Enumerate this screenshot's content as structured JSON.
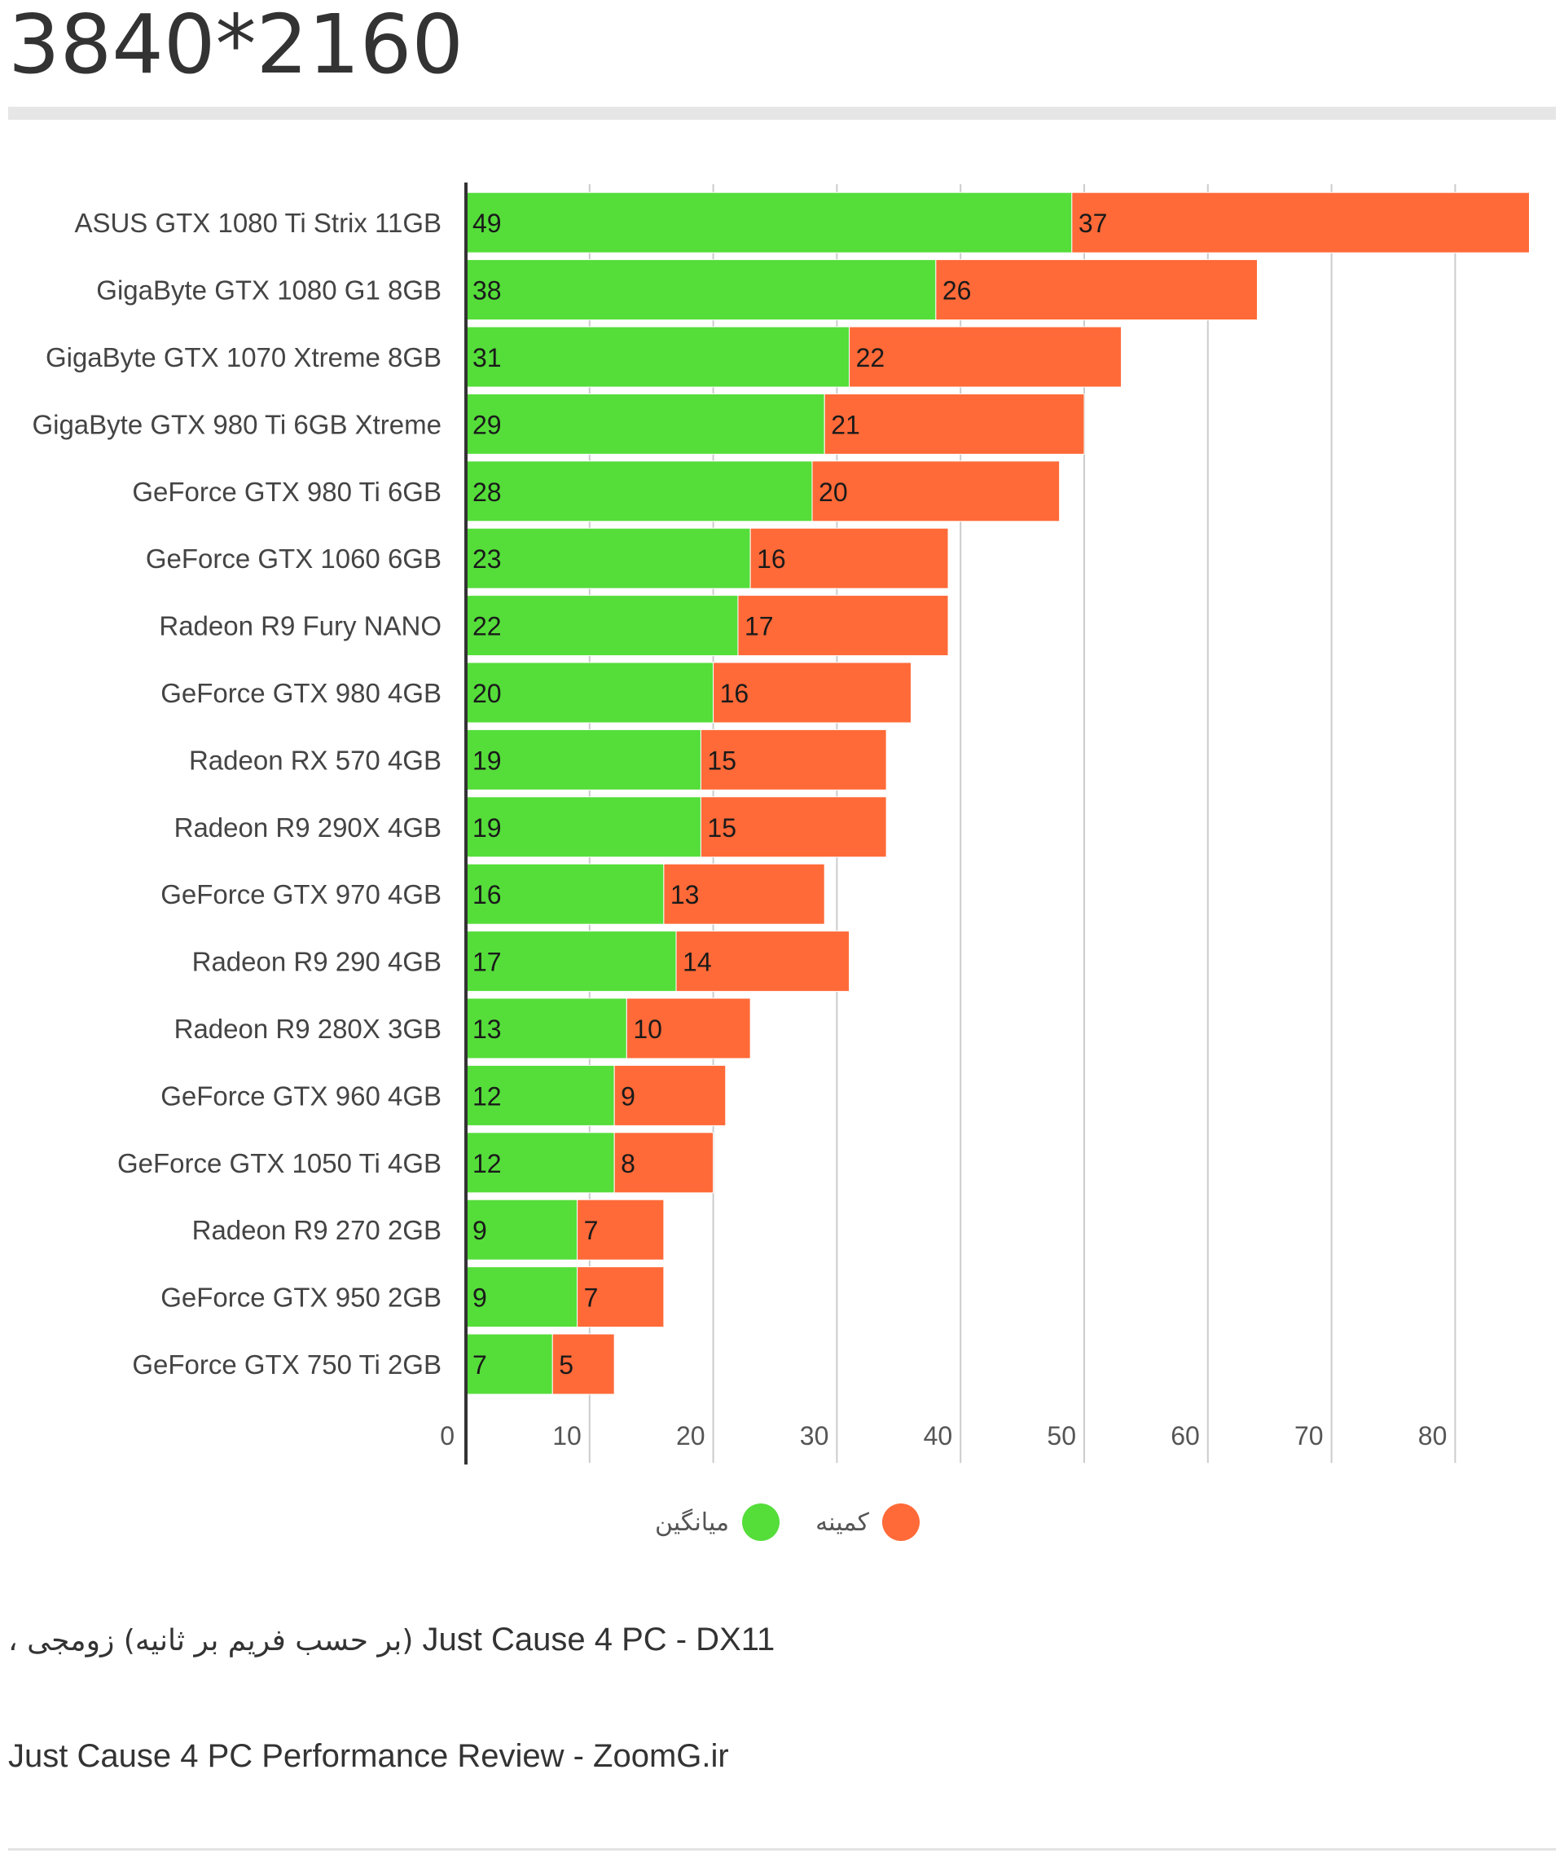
{
  "page": {
    "title": "3840*2160",
    "caption_line1_fa": "(بر حسب فریم بر ثانیه) زومجی ،",
    "caption_line1_en": "Just Cause 4 PC -  DX11",
    "caption_line2": "Just Cause 4 PC Performance Review - ZoomG.ir"
  },
  "legend": {
    "items": [
      {
        "label": "کمینه",
        "color": "#ff6a38"
      },
      {
        "label": "میانگین",
        "color": "#55dd3a"
      }
    ]
  },
  "chart_data": {
    "type": "bar",
    "orientation": "horizontal",
    "stacked": true,
    "categories": [
      "ASUS GTX 1080 Ti Strix 11GB",
      "GigaByte GTX 1080 G1 8GB",
      "GigaByte GTX 1070 Xtreme 8GB",
      "GigaByte GTX 980 Ti 6GB Xtreme",
      "GeForce GTX 980 Ti 6GB",
      "GeForce GTX 1060 6GB",
      "Radeon R9 Fury NANO",
      "GeForce GTX 980 4GB",
      "Radeon RX 570 4GB",
      "Radeon R9 290X 4GB",
      "GeForce GTX 970 4GB",
      "Radeon R9 290 4GB",
      "Radeon R9 280X 3GB",
      "GeForce GTX 960 4GB",
      "GeForce GTX 1050 Ti 4GB",
      "Radeon R9 270 2GB",
      "GeForce GTX 950 2GB",
      "GeForce GTX 750 Ti 2GB"
    ],
    "series": [
      {
        "name": "میانگین",
        "color": "#55dd3a",
        "values": [
          49,
          38,
          31,
          29,
          28,
          23,
          22,
          20,
          19,
          19,
          16,
          17,
          13,
          12,
          12,
          9,
          9,
          7
        ]
      },
      {
        "name": "کمینه",
        "color": "#ff6a38",
        "values": [
          37,
          26,
          22,
          21,
          20,
          16,
          17,
          16,
          15,
          15,
          13,
          14,
          10,
          9,
          8,
          7,
          7,
          5
        ]
      }
    ],
    "xticks": [
      0,
      10,
      20,
      30,
      40,
      50,
      60,
      70,
      80
    ],
    "xlim": [
      0,
      86
    ],
    "grid": true,
    "legend_position": "bottom-center"
  }
}
